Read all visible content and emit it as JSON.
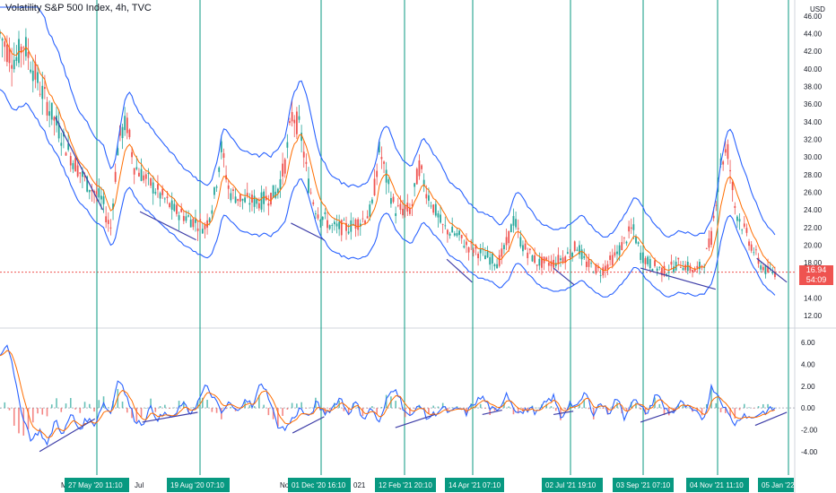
{
  "header": {
    "title": "Volatility S&P 500 Index, 4h, TVC",
    "currency": "USD"
  },
  "last_price": {
    "value": "16.94",
    "countdown": "54:09"
  },
  "colors": {
    "up": "#26a69a",
    "down": "#ef5350",
    "band": "#2962ff",
    "signal": "#ff6d00",
    "trendline": "#3f3fa8",
    "vline": "#089981",
    "pricetag": "#ef5350",
    "date_tag": "#089981"
  },
  "chart_data": [
    {
      "type": "line",
      "title": "Volatility S&P 500 Index, 4h, TVC",
      "ylim": [
        11,
        47
      ],
      "y_ticks": [
        "12.00",
        "14.00",
        "16.00",
        "18.00",
        "20.00",
        "22.00",
        "24.00",
        "26.00",
        "28.00",
        "30.00",
        "32.00",
        "34.00",
        "36.00",
        "38.00",
        "40.00",
        "42.00",
        "44.00",
        "46.00"
      ],
      "x_labels": [
        "M",
        "Jul",
        "No",
        "021"
      ],
      "date_tags": [
        "27 May '20  11:10",
        "19 Aug '20  07:10",
        "01 Dec '20  16:10",
        "12 Feb '21  20:10",
        "14 Apr '21  07:10",
        "02 Jul '21  19:10",
        "03 Sep '21  07:10",
        "04 Nov '21  11:10",
        "05 Jan '22"
      ],
      "series": [
        {
          "values": [
            [
              0,
              44
            ],
            [
              0.01,
              42
            ],
            [
              0.02,
              41
            ],
            [
              0.03,
              43
            ],
            [
              0.05,
              38
            ],
            [
              0.07,
              34
            ],
            [
              0.09,
              30
            ],
            [
              0.11,
              27
            ],
            [
              0.13,
              25
            ],
            [
              0.135,
              23
            ],
            [
              0.14,
              22
            ],
            [
              0.15,
              32
            ],
            [
              0.16,
              34
            ],
            [
              0.17,
              29
            ],
            [
              0.19,
              27
            ],
            [
              0.21,
              25
            ],
            [
              0.22,
              24
            ],
            [
              0.24,
              23
            ],
            [
              0.26,
              22
            ],
            [
              0.27,
              25
            ],
            [
              0.28,
              31
            ],
            [
              0.29,
              26
            ],
            [
              0.31,
              25
            ],
            [
              0.33,
              25
            ],
            [
              0.35,
              26
            ],
            [
              0.36,
              29
            ],
            [
              0.37,
              35
            ],
            [
              0.38,
              33
            ],
            [
              0.39,
              27
            ],
            [
              0.4,
              24
            ],
            [
              0.42,
              22
            ],
            [
              0.44,
              22
            ],
            [
              0.46,
              23
            ],
            [
              0.47,
              24
            ],
            [
              0.48,
              31
            ],
            [
              0.49,
              27
            ],
            [
              0.5,
              24
            ],
            [
              0.52,
              24
            ],
            [
              0.53,
              29
            ],
            [
              0.54,
              26
            ],
            [
              0.56,
              22
            ],
            [
              0.58,
              21
            ],
            [
              0.59,
              20
            ],
            [
              0.61,
              19
            ],
            [
              0.63,
              18
            ],
            [
              0.64,
              20
            ],
            [
              0.65,
              23
            ],
            [
              0.66,
              20
            ],
            [
              0.68,
              18
            ],
            [
              0.7,
              18
            ],
            [
              0.72,
              19
            ],
            [
              0.73,
              20
            ],
            [
              0.74,
              18
            ],
            [
              0.76,
              17
            ],
            [
              0.78,
              19
            ],
            [
              0.8,
              22
            ],
            [
              0.81,
              19
            ],
            [
              0.82,
              18
            ],
            [
              0.84,
              17
            ],
            [
              0.86,
              18
            ],
            [
              0.88,
              17
            ],
            [
              0.89,
              18
            ],
            [
              0.9,
              21
            ],
            [
              0.91,
              29
            ],
            [
              0.92,
              31
            ],
            [
              0.93,
              24
            ],
            [
              0.94,
              22
            ],
            [
              0.95,
              20
            ],
            [
              0.96,
              18
            ],
            [
              0.97,
              17
            ],
            [
              0.98,
              16.94
            ]
          ]
        }
      ]
    },
    {
      "type": "line",
      "ylim": [
        -5.5,
        7
      ],
      "y_ticks": [
        "-4.00",
        "-2.00",
        "0.00",
        "2.00",
        "4.00",
        "6.00"
      ],
      "series": [
        {
          "values": [
            [
              0,
              5
            ],
            [
              0.01,
              6
            ],
            [
              0.02,
              2
            ],
            [
              0.03,
              -1
            ],
            [
              0.04,
              -3
            ],
            [
              0.05,
              -2
            ],
            [
              0.06,
              -3.5
            ],
            [
              0.07,
              -1
            ],
            [
              0.08,
              -2.5
            ],
            [
              0.09,
              -0.5
            ],
            [
              0.1,
              -2
            ],
            [
              0.11,
              -1
            ],
            [
              0.12,
              -1.5
            ],
            [
              0.13,
              0.5
            ],
            [
              0.14,
              -0.5
            ],
            [
              0.15,
              3
            ],
            [
              0.16,
              1
            ],
            [
              0.17,
              -1
            ],
            [
              0.18,
              -1.5
            ],
            [
              0.19,
              0
            ],
            [
              0.2,
              -1
            ],
            [
              0.21,
              -0.5
            ],
            [
              0.22,
              -1
            ],
            [
              0.23,
              0.5
            ],
            [
              0.24,
              -0.5
            ],
            [
              0.25,
              0.5
            ],
            [
              0.26,
              2
            ],
            [
              0.27,
              1
            ],
            [
              0.28,
              -0.5
            ],
            [
              0.29,
              0.5
            ],
            [
              0.3,
              -0.5
            ],
            [
              0.31,
              1
            ],
            [
              0.32,
              0
            ],
            [
              0.33,
              2.5
            ],
            [
              0.34,
              1
            ],
            [
              0.35,
              -1.5
            ],
            [
              0.36,
              -2
            ],
            [
              0.37,
              -1
            ],
            [
              0.38,
              0
            ],
            [
              0.39,
              -1
            ],
            [
              0.4,
              0.5
            ],
            [
              0.41,
              -0.5
            ],
            [
              0.42,
              0
            ],
            [
              0.43,
              1
            ],
            [
              0.44,
              -0.5
            ],
            [
              0.45,
              0.5
            ],
            [
              0.46,
              -1
            ],
            [
              0.47,
              0
            ],
            [
              0.48,
              -1.5
            ],
            [
              0.49,
              1
            ],
            [
              0.5,
              2
            ],
            [
              0.51,
              0
            ],
            [
              0.52,
              -1
            ],
            [
              0.53,
              0.5
            ],
            [
              0.54,
              -1
            ],
            [
              0.55,
              -0.5
            ],
            [
              0.56,
              0
            ],
            [
              0.57,
              -0.5
            ],
            [
              0.58,
              0
            ],
            [
              0.59,
              -0.5
            ],
            [
              0.6,
              0.5
            ],
            [
              0.61,
              1
            ],
            [
              0.62,
              0
            ],
            [
              0.63,
              -0.5
            ],
            [
              0.64,
              1.5
            ],
            [
              0.65,
              0
            ],
            [
              0.66,
              -0.5
            ],
            [
              0.67,
              0
            ],
            [
              0.68,
              -0.5
            ],
            [
              0.69,
              0.5
            ],
            [
              0.7,
              1
            ],
            [
              0.71,
              -1
            ],
            [
              0.72,
              0.5
            ],
            [
              0.73,
              0
            ],
            [
              0.74,
              1.5
            ],
            [
              0.75,
              -0.5
            ],
            [
              0.76,
              0.5
            ],
            [
              0.77,
              -0.5
            ],
            [
              0.78,
              1
            ],
            [
              0.79,
              -1
            ],
            [
              0.8,
              1
            ],
            [
              0.81,
              0
            ],
            [
              0.82,
              -0.5
            ],
            [
              0.83,
              1.5
            ],
            [
              0.84,
              0
            ],
            [
              0.85,
              -0.5
            ],
            [
              0.86,
              0.5
            ],
            [
              0.87,
              0
            ],
            [
              0.88,
              -0.5
            ],
            [
              0.89,
              -1
            ],
            [
              0.9,
              2
            ],
            [
              0.91,
              1
            ],
            [
              0.92,
              -0.5
            ],
            [
              0.93,
              -1.5
            ],
            [
              0.94,
              -0.5
            ],
            [
              0.95,
              -1
            ],
            [
              0.96,
              -0.5
            ],
            [
              0.97,
              -0.3
            ],
            [
              0.98,
              0
            ]
          ]
        }
      ]
    }
  ]
}
